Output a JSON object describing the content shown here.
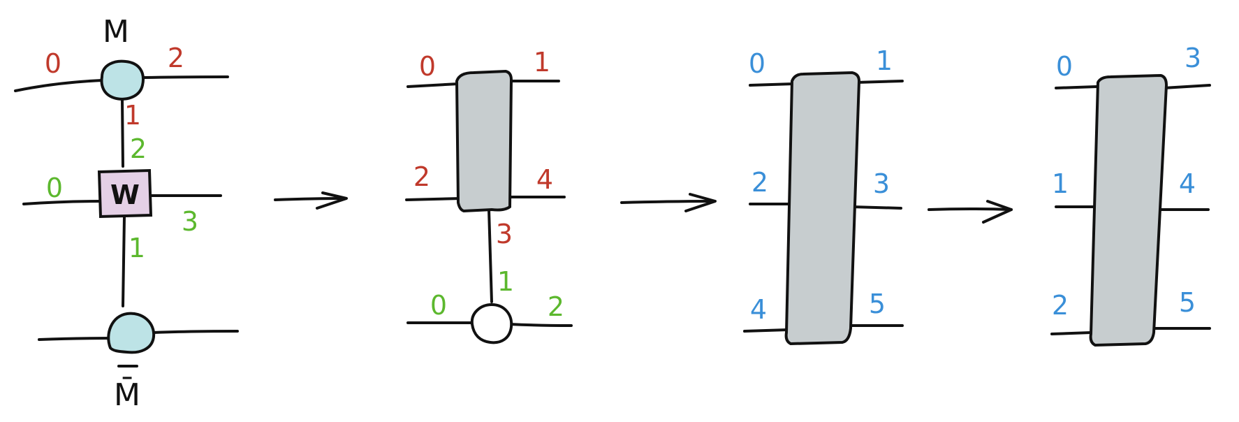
{
  "colors": {
    "red": "#c0392b",
    "green": "#5cb82e",
    "blue": "#3a8fd8",
    "ink": "#111111",
    "mps_fill": "#bde3e6",
    "w_fill": "#e4d0e6",
    "block_fill": "#c7cdcf"
  },
  "panel1": {
    "top_site_label": "M",
    "bottom_site_label": "M̄",
    "mpo_label": "W",
    "top_legs": [
      "0",
      "2",
      "1"
    ],
    "mpo_legs": [
      "2",
      "0",
      "3",
      "1"
    ]
  },
  "panel2": {
    "block_legs": [
      "0",
      "1",
      "2",
      "4",
      "3"
    ],
    "site_legs": [
      "1",
      "0",
      "2"
    ]
  },
  "panel3": {
    "legs": [
      "0",
      "1",
      "2",
      "3",
      "4",
      "5"
    ]
  },
  "panel4": {
    "legs": [
      "0",
      "3",
      "1",
      "4",
      "2",
      "5"
    ]
  }
}
